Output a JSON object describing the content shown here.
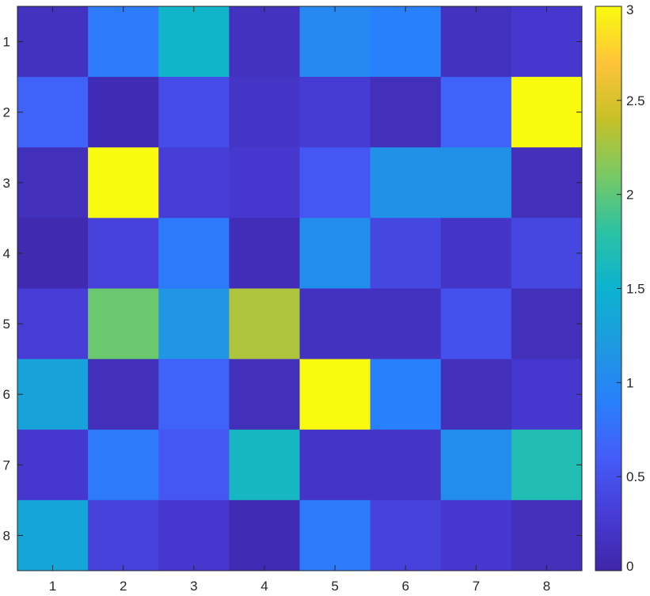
{
  "chart_data": {
    "type": "heatmap",
    "title": "",
    "xlabel": "",
    "ylabel": "",
    "x_categories": [
      "1",
      "2",
      "3",
      "4",
      "5",
      "6",
      "7",
      "8"
    ],
    "y_categories": [
      "1",
      "2",
      "3",
      "4",
      "5",
      "6",
      "7",
      "8"
    ],
    "values": [
      [
        0.15,
        0.85,
        1.55,
        0.15,
        1.0,
        0.9,
        0.15,
        0.25
      ],
      [
        0.65,
        0.08,
        0.45,
        0.2,
        0.28,
        0.12,
        0.65,
        3.0
      ],
      [
        0.12,
        3.0,
        0.3,
        0.25,
        0.55,
        1.1,
        1.1,
        0.12
      ],
      [
        0.05,
        0.35,
        0.85,
        0.1,
        1.05,
        0.4,
        0.2,
        0.4
      ],
      [
        0.3,
        2.05,
        1.15,
        2.3,
        0.15,
        0.15,
        0.5,
        0.12
      ],
      [
        1.3,
        0.12,
        0.65,
        0.12,
        3.0,
        0.9,
        0.12,
        0.25
      ],
      [
        0.25,
        0.85,
        0.55,
        1.6,
        0.2,
        0.2,
        1.05,
        1.7
      ],
      [
        1.35,
        0.35,
        0.25,
        0.08,
        0.85,
        0.35,
        0.25,
        0.12
      ]
    ],
    "colorbar": {
      "min": 0,
      "max": 3,
      "ticks": [
        0,
        0.5,
        1,
        1.5,
        2,
        2.5,
        3
      ],
      "tick_labels": [
        "0",
        "0.5",
        "1",
        "1.5",
        "2",
        "2.5",
        "3"
      ],
      "colormap": "parula"
    },
    "grid": false,
    "legend": "colorbar-right"
  }
}
